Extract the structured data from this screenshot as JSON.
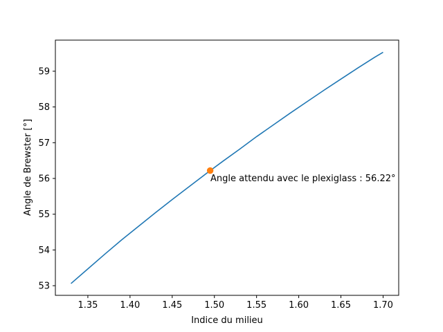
{
  "chart_data": {
    "type": "line",
    "title": "",
    "xlabel": "Indice du milieu",
    "ylabel": "Angle de Brewster [°]",
    "xlim": [
      1.3115,
      1.7185
    ],
    "ylim": [
      52.73,
      59.87
    ],
    "xticks": [
      1.35,
      1.4,
      1.45,
      1.5,
      1.55,
      1.6,
      1.65,
      1.7
    ],
    "xtick_labels": [
      "1.35",
      "1.40",
      "1.45",
      "1.50",
      "1.55",
      "1.60",
      "1.65",
      "1.70"
    ],
    "yticks": [
      53,
      54,
      55,
      56,
      57,
      58,
      59
    ],
    "ytick_labels": [
      "53",
      "54",
      "55",
      "56",
      "57",
      "58",
      "59"
    ],
    "grid": false,
    "series": [
      {
        "color": "#1f77b4",
        "x": [
          1.33,
          1.35,
          1.37,
          1.39,
          1.41,
          1.43,
          1.45,
          1.47,
          1.49,
          1.51,
          1.53,
          1.55,
          1.57,
          1.59,
          1.61,
          1.63,
          1.65,
          1.67,
          1.69,
          1.7
        ],
        "y": [
          53.06,
          53.47,
          53.88,
          54.28,
          54.66,
          55.04,
          55.41,
          55.77,
          56.13,
          56.48,
          56.82,
          57.17,
          57.5,
          57.83,
          58.15,
          58.47,
          58.78,
          59.09,
          59.39,
          59.53
        ]
      }
    ],
    "highlight_point": {
      "x": 1.495,
      "y": 56.22,
      "color": "#ff7f0e"
    },
    "annotation": {
      "text": "Angle attendu avec le plexiglass : 56.22°",
      "x": 1.495,
      "y": 56.22
    }
  }
}
